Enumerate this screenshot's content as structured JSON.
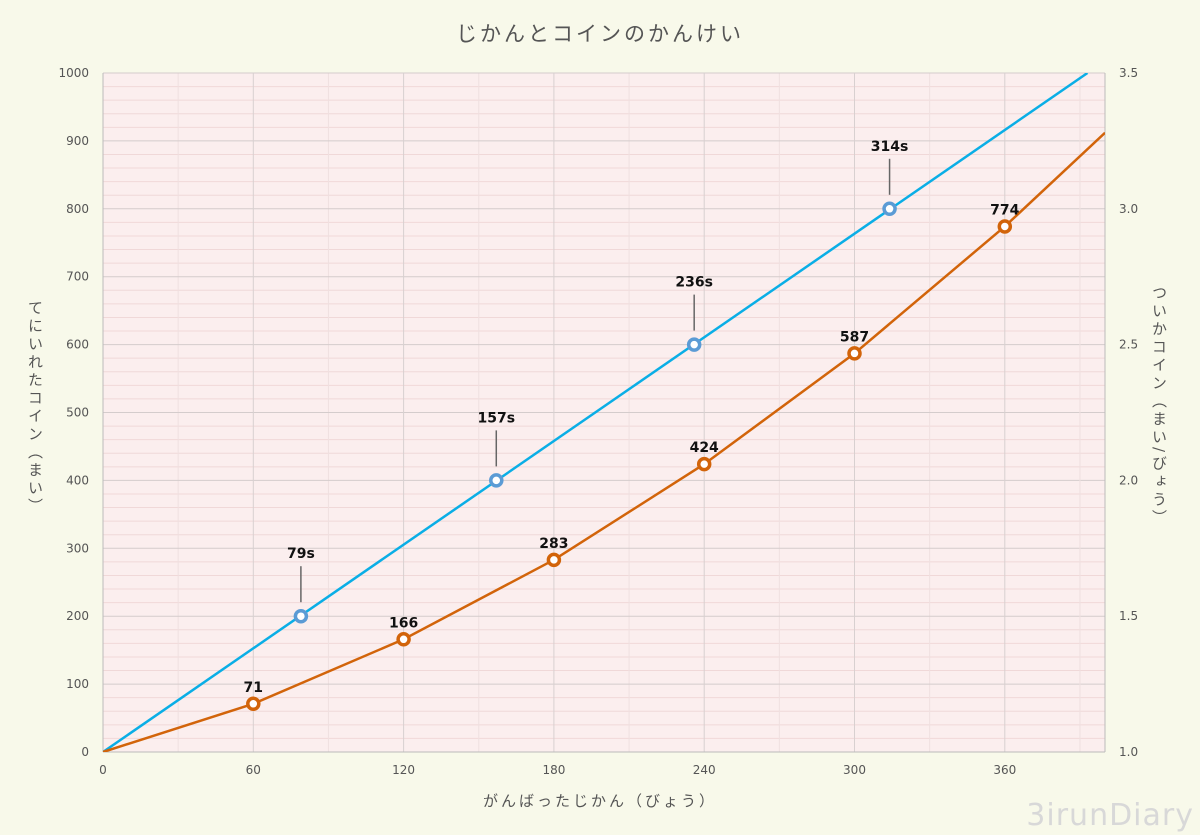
{
  "chart_data": {
    "type": "line",
    "title": "じかんとコインのかんけい",
    "xlabel": "がんばったじかん（びょう）",
    "ylabel": "てにいれたコイン（まい）",
    "y2label": "ついかコイン（まい/びょう）",
    "xlim": [
      0,
      400
    ],
    "ylim": [
      0,
      1000
    ],
    "y2lim": [
      1.0,
      3.5
    ],
    "xticks": [
      "0",
      "60",
      "120",
      "180",
      "240",
      "300",
      "360"
    ],
    "yticks": [
      "0",
      "100",
      "200",
      "300",
      "400",
      "500",
      "600",
      "700",
      "800",
      "900",
      "1000"
    ],
    "y2ticks": [
      "1.0",
      "1.5",
      "2.0",
      "2.5",
      "3.0",
      "3.5"
    ],
    "grid": true,
    "series": [
      {
        "name": "blue",
        "color": "#0aaee6",
        "marker_color": "#5b9bd5",
        "line": [
          [
            0,
            0
          ],
          [
            393,
            1000
          ]
        ],
        "points": [
          [
            79,
            200
          ],
          [
            157,
            400
          ],
          [
            236,
            600
          ],
          [
            314,
            800
          ]
        ],
        "labels": [
          "79s",
          "157s",
          "236s",
          "314s"
        ]
      },
      {
        "name": "orange",
        "color": "#d2640a",
        "marker_color": "#d2640a",
        "line": [
          [
            0,
            0
          ],
          [
            60,
            71
          ],
          [
            120,
            166
          ],
          [
            180,
            283
          ],
          [
            240,
            424
          ],
          [
            300,
            587
          ],
          [
            360,
            774
          ],
          [
            400,
            912
          ]
        ],
        "points": [
          [
            60,
            71
          ],
          [
            120,
            166
          ],
          [
            180,
            283
          ],
          [
            240,
            424
          ],
          [
            300,
            587
          ],
          [
            360,
            774
          ]
        ],
        "labels": [
          "71",
          "166",
          "283",
          "424",
          "587",
          "774"
        ]
      }
    ]
  },
  "watermark": "3irunDiary"
}
